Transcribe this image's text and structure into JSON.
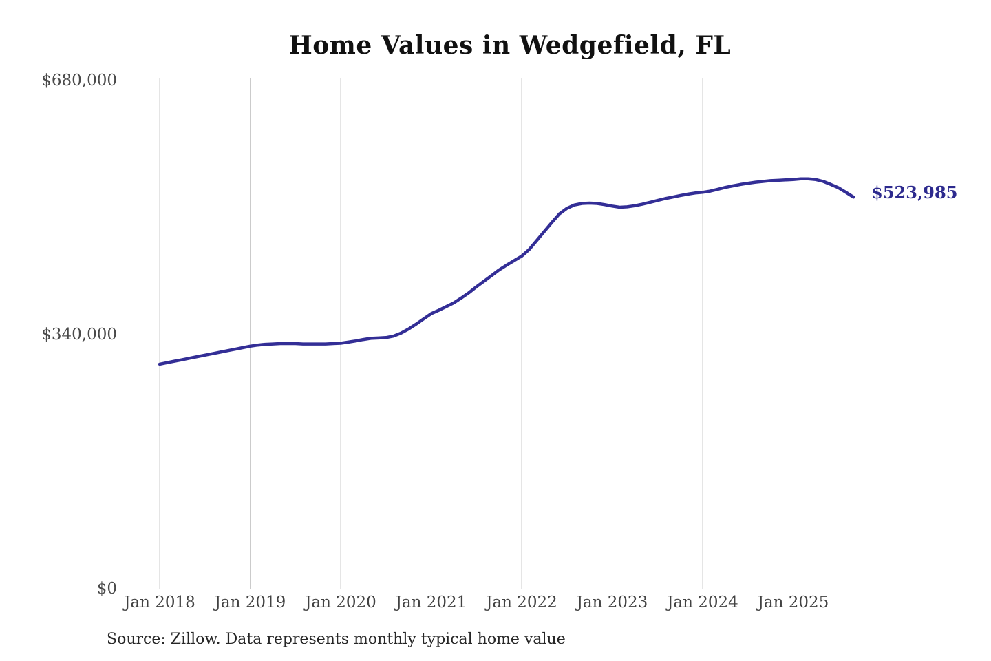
{
  "chart_data": {
    "type": "line",
    "title": "Home Values in Wedgefield, FL",
    "x_tick_labels": [
      "Jan 2018",
      "Jan 2019",
      "Jan 2020",
      "Jan 2021",
      "Jan 2022",
      "Jan 2023",
      "Jan 2024",
      "Jan 2025"
    ],
    "y_tick_labels": [
      "$0",
      "$340,000",
      "$680,000"
    ],
    "y_tick_values": [
      0,
      340000,
      680000
    ],
    "ylim": [
      0,
      680000
    ],
    "grid": "vertical-only",
    "legend": "none",
    "series": [
      {
        "name": "Monthly typical home value",
        "start": "Jan 2018",
        "interval": "monthly",
        "values": [
          300500,
          302500,
          304500,
          306500,
          308500,
          310500,
          312500,
          314500,
          316500,
          318500,
          320500,
          322500,
          324500,
          326000,
          327000,
          327500,
          328000,
          328000,
          328000,
          327500,
          327500,
          327500,
          327500,
          328000,
          328500,
          330000,
          331500,
          333500,
          335000,
          335500,
          336000,
          338000,
          342000,
          347500,
          354000,
          361000,
          368000,
          372500,
          377500,
          382500,
          389000,
          396000,
          404000,
          411500,
          419000,
          426500,
          433000,
          439000,
          445000,
          454000,
          466000,
          478000,
          490000,
          501500,
          509000,
          513500,
          515500,
          516000,
          515500,
          514000,
          512000,
          510500,
          511000,
          512500,
          514500,
          517000,
          519500,
          522000,
          524000,
          526000,
          528000,
          529500,
          530500,
          532000,
          534500,
          537000,
          539000,
          541000,
          542500,
          544000,
          545000,
          546000,
          546500,
          547000,
          547500,
          548500,
          548500,
          547500,
          545000,
          541000,
          536500,
          530500,
          523985
        ]
      }
    ],
    "end_value": 523985,
    "end_value_label": "$523,985",
    "source": "Source: Zillow. Data represents monthly typical home value",
    "colors": {
      "line": "#332e96",
      "end_label": "#2d2a8e",
      "gridline": "#cbcbcb",
      "y_axis_text": "#4a4a4a",
      "x_axis_text": "#424242",
      "title_text": "#111111",
      "source_text": "#262626"
    }
  }
}
